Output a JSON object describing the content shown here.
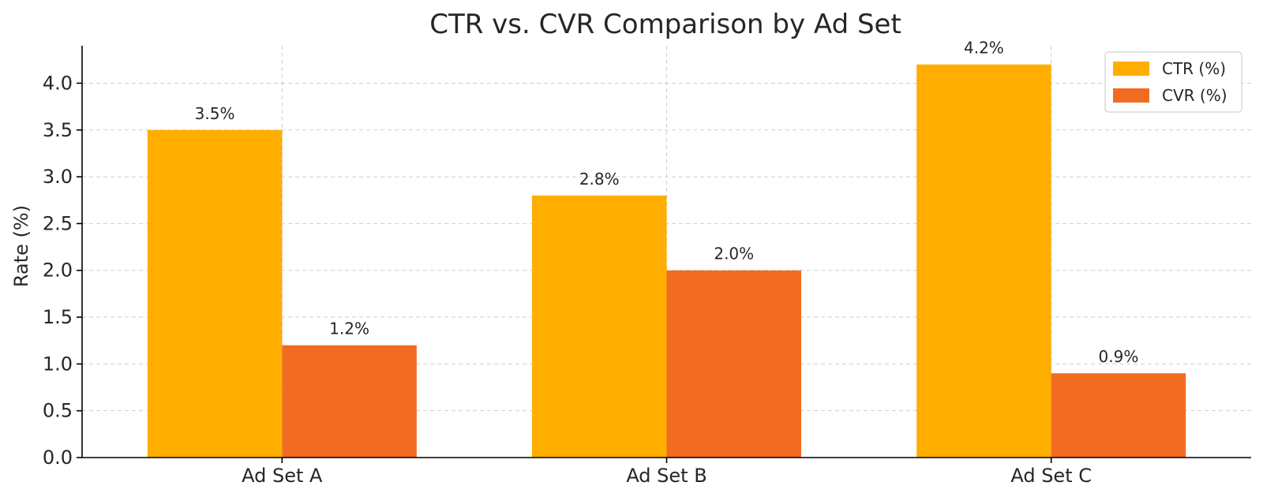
{
  "chart_data": {
    "type": "bar",
    "title": "CTR vs. CVR Comparison by Ad Set",
    "xlabel": "",
    "ylabel": "Rate (%)",
    "categories": [
      "Ad Set A",
      "Ad Set B",
      "Ad Set C"
    ],
    "series": [
      {
        "name": "CTR (%)",
        "values": [
          3.5,
          2.8,
          4.2
        ],
        "labels": [
          "3.5%",
          "2.8%",
          "4.2%"
        ],
        "color": "#FFAE00"
      },
      {
        "name": "CVR (%)",
        "values": [
          1.2,
          2.0,
          0.9
        ],
        "labels": [
          "1.2%",
          "2.0%",
          "0.9%"
        ],
        "color": "#F26B22"
      }
    ],
    "ylim": [
      0,
      4.4
    ],
    "yticks": [
      0.0,
      0.5,
      1.0,
      1.5,
      2.0,
      2.5,
      3.0,
      3.5,
      4.0
    ],
    "ytick_labels": [
      "0.0",
      "0.5",
      "1.0",
      "1.5",
      "2.0",
      "2.5",
      "3.0",
      "3.5",
      "4.0"
    ],
    "grid": true,
    "legend_position": "top-right"
  }
}
